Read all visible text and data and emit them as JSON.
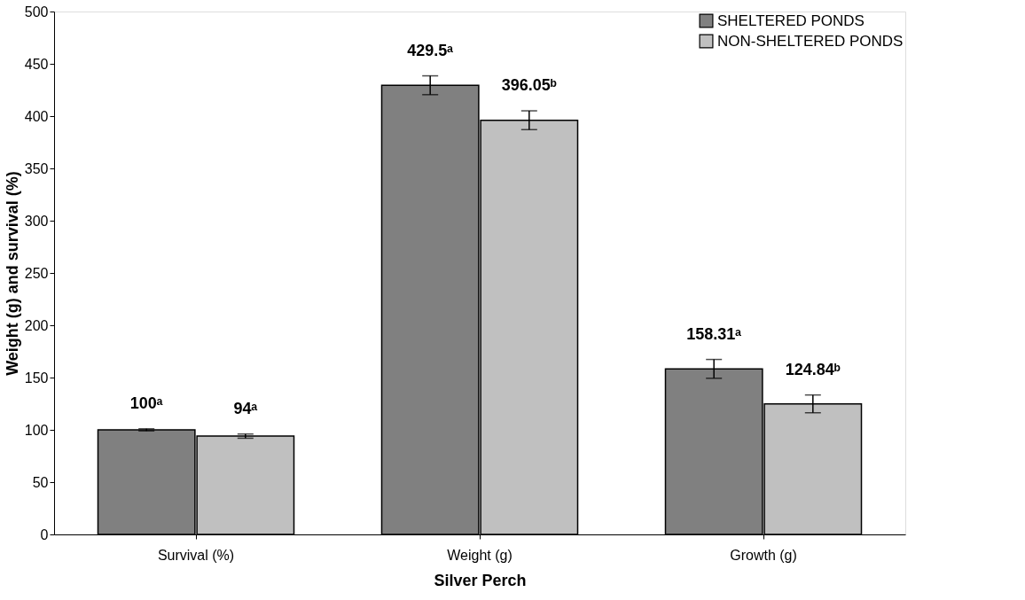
{
  "chart_data": {
    "type": "bar",
    "xlabel": "Silver Perch",
    "ylabel": "Weight (g) and survival (%)",
    "categories": [
      "Survival (%)",
      "Weight (g)",
      "Growth (g)"
    ],
    "series": [
      {
        "name": "SHELTERED PONDS",
        "color": "#808080",
        "values": [
          100,
          429.5,
          158.31
        ],
        "errors": [
          1,
          9,
          9
        ],
        "value_labels": [
          "100ᵃ",
          "429.5ᵃ",
          "158.31ᵃ"
        ]
      },
      {
        "name": "NON-SHELTERED PONDS",
        "color": "#c0c0c0",
        "values": [
          94,
          396.05,
          124.84
        ],
        "errors": [
          2,
          9,
          8.5
        ],
        "value_labels": [
          "94ᵃ",
          "396.05ᵇ",
          "124.84ᵇ"
        ]
      }
    ],
    "ylim": [
      0,
      500
    ],
    "yticks": [
      0,
      50,
      100,
      150,
      200,
      250,
      300,
      350,
      400,
      450,
      500
    ],
    "grid": false,
    "legend": "top right"
  }
}
